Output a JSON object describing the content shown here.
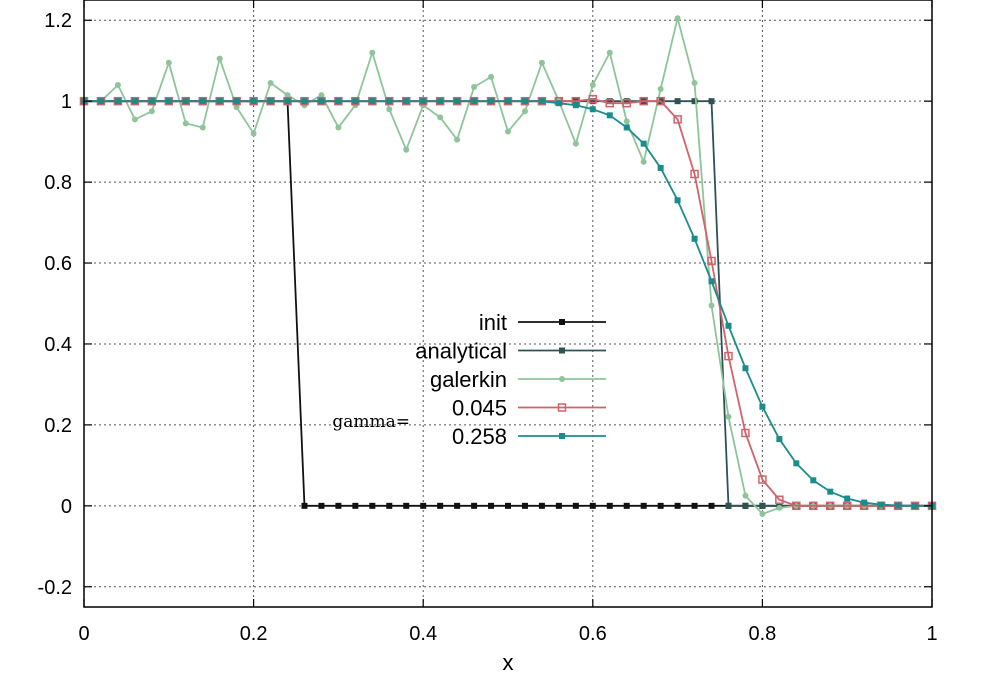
{
  "chart_data": {
    "type": "line",
    "title": "",
    "xlabel": "x",
    "ylabel": "",
    "xlim": [
      0,
      1
    ],
    "ylim": [
      -0.25,
      1.25
    ],
    "grid": true,
    "grid_style": "dotted",
    "legend_position": "center",
    "legend_prefix": "gamma=",
    "x_ticks": [
      "0",
      "0.2",
      "0.4",
      "0.6",
      "0.8",
      "1"
    ],
    "y_ticks": [
      "-0.2",
      "0",
      "0.2",
      "0.4",
      "0.6",
      "0.8",
      "1",
      "1.2"
    ],
    "series": [
      {
        "name": "init",
        "color": "#111111",
        "marker": "filled-square",
        "x": [
          0,
          0.02,
          0.04,
          0.06,
          0.08,
          0.1,
          0.12,
          0.14,
          0.16,
          0.18,
          0.2,
          0.22,
          0.24,
          0.26,
          0.28,
          0.3,
          0.32,
          0.34,
          0.36,
          0.38,
          0.4,
          0.42,
          0.44,
          0.46,
          0.48,
          0.5,
          0.52,
          0.54,
          0.56,
          0.58,
          0.6,
          0.62,
          0.64,
          0.66,
          0.68,
          0.7,
          0.72,
          0.74,
          0.76,
          0.78,
          0.8,
          0.82,
          0.84,
          0.86,
          0.88,
          0.9,
          0.92,
          0.94,
          0.96,
          0.98,
          1.0
        ],
        "y": [
          1,
          1,
          1,
          1,
          1,
          1,
          1,
          1,
          1,
          1,
          1,
          1,
          1,
          0,
          0,
          0,
          0,
          0,
          0,
          0,
          0,
          0,
          0,
          0,
          0,
          0,
          0,
          0,
          0,
          0,
          0,
          0,
          0,
          0,
          0,
          0,
          0,
          0,
          0,
          0,
          0,
          0,
          0,
          0,
          0,
          0,
          0,
          0,
          0,
          0,
          0
        ]
      },
      {
        "name": "analytical",
        "color": "#2f5254",
        "marker": "filled-square",
        "x": [
          0,
          0.02,
          0.04,
          0.06,
          0.08,
          0.1,
          0.12,
          0.14,
          0.16,
          0.18,
          0.2,
          0.22,
          0.24,
          0.26,
          0.28,
          0.3,
          0.32,
          0.34,
          0.36,
          0.38,
          0.4,
          0.42,
          0.44,
          0.46,
          0.48,
          0.5,
          0.52,
          0.54,
          0.56,
          0.58,
          0.6,
          0.62,
          0.64,
          0.66,
          0.68,
          0.7,
          0.72,
          0.74,
          0.76,
          0.78,
          0.8,
          0.82,
          0.84,
          0.86,
          0.88,
          0.9,
          0.92,
          0.94,
          0.96,
          0.98,
          1.0
        ],
        "y": [
          1,
          1,
          1,
          1,
          1,
          1,
          1,
          1,
          1,
          1,
          1,
          1,
          1,
          1,
          1,
          1,
          1,
          1,
          1,
          1,
          1,
          1,
          1,
          1,
          1,
          1,
          1,
          1,
          1,
          1,
          1,
          1,
          1,
          1,
          1,
          1,
          1,
          1,
          0,
          0,
          0,
          0,
          0,
          0,
          0,
          0,
          0,
          0,
          0,
          0,
          0
        ]
      },
      {
        "name": "galerkin",
        "color": "#8fc49b",
        "marker": "filled-circle",
        "x": [
          0,
          0.02,
          0.04,
          0.06,
          0.08,
          0.1,
          0.12,
          0.14,
          0.16,
          0.18,
          0.2,
          0.22,
          0.24,
          0.26,
          0.28,
          0.3,
          0.32,
          0.34,
          0.36,
          0.38,
          0.4,
          0.42,
          0.44,
          0.46,
          0.48,
          0.5,
          0.52,
          0.54,
          0.56,
          0.58,
          0.6,
          0.62,
          0.64,
          0.66,
          0.68,
          0.7,
          0.72,
          0.74,
          0.76,
          0.78,
          0.8,
          0.82,
          0.84,
          0.86,
          0.88,
          0.9,
          0.92,
          0.94,
          0.96,
          0.98,
          1.0
        ],
        "y": [
          1.0,
          1.0,
          1.04,
          0.955,
          0.975,
          1.095,
          0.945,
          0.935,
          1.105,
          0.985,
          0.92,
          1.045,
          1.015,
          0.99,
          1.015,
          0.935,
          0.99,
          1.12,
          0.98,
          0.88,
          0.99,
          0.96,
          0.905,
          1.035,
          1.06,
          0.925,
          0.975,
          1.095,
          1.0,
          0.895,
          1.04,
          1.12,
          0.95,
          0.85,
          1.03,
          1.205,
          1.045,
          0.495,
          0.22,
          0.025,
          -0.02,
          -0.005,
          0.0,
          0.0,
          0.0,
          0.0,
          0.0,
          0.0,
          0.0,
          0.0,
          0.0
        ]
      },
      {
        "name": "0.045",
        "color": "#d0636a",
        "marker": "open-square",
        "x": [
          0,
          0.02,
          0.04,
          0.06,
          0.08,
          0.1,
          0.12,
          0.14,
          0.16,
          0.18,
          0.2,
          0.22,
          0.24,
          0.26,
          0.28,
          0.3,
          0.32,
          0.34,
          0.36,
          0.38,
          0.4,
          0.42,
          0.44,
          0.46,
          0.48,
          0.5,
          0.52,
          0.54,
          0.56,
          0.58,
          0.6,
          0.62,
          0.64,
          0.66,
          0.68,
          0.7,
          0.72,
          0.74,
          0.76,
          0.78,
          0.8,
          0.82,
          0.84,
          0.86,
          0.88,
          0.9,
          0.92,
          0.94,
          0.96,
          0.98,
          1.0
        ],
        "y": [
          1,
          1,
          1,
          1,
          1,
          1,
          1,
          1,
          1,
          1,
          1,
          1,
          1,
          1,
          1,
          1,
          1,
          1,
          1,
          1,
          1,
          1,
          1,
          1,
          1,
          1,
          1,
          1,
          1,
          1,
          1.005,
          0.995,
          0.995,
          1.0,
          1.0,
          0.955,
          0.82,
          0.605,
          0.37,
          0.18,
          0.065,
          0.015,
          0.0,
          0.0,
          0.0,
          0.0,
          0.0,
          0.0,
          0.0,
          0.0,
          0.0
        ]
      },
      {
        "name": "0.258",
        "color": "#1a8c8c",
        "marker": "filled-square",
        "x": [
          0,
          0.02,
          0.04,
          0.06,
          0.08,
          0.1,
          0.12,
          0.14,
          0.16,
          0.18,
          0.2,
          0.22,
          0.24,
          0.26,
          0.28,
          0.3,
          0.32,
          0.34,
          0.36,
          0.38,
          0.4,
          0.42,
          0.44,
          0.46,
          0.48,
          0.5,
          0.52,
          0.54,
          0.56,
          0.58,
          0.6,
          0.62,
          0.64,
          0.66,
          0.68,
          0.7,
          0.72,
          0.74,
          0.76,
          0.78,
          0.8,
          0.82,
          0.84,
          0.86,
          0.88,
          0.9,
          0.92,
          0.94,
          0.96,
          0.98,
          1.0
        ],
        "y": [
          1,
          1,
          1,
          1,
          1,
          1,
          1,
          1,
          1,
          1,
          1,
          1,
          1,
          1,
          1,
          1,
          1,
          1,
          1,
          1,
          1,
          1,
          1,
          1,
          1,
          1,
          1,
          1,
          0.995,
          0.99,
          0.98,
          0.965,
          0.935,
          0.895,
          0.835,
          0.755,
          0.66,
          0.555,
          0.445,
          0.34,
          0.245,
          0.165,
          0.105,
          0.063,
          0.035,
          0.018,
          0.008,
          0.003,
          0.001,
          0.0,
          0.0
        ]
      }
    ]
  }
}
